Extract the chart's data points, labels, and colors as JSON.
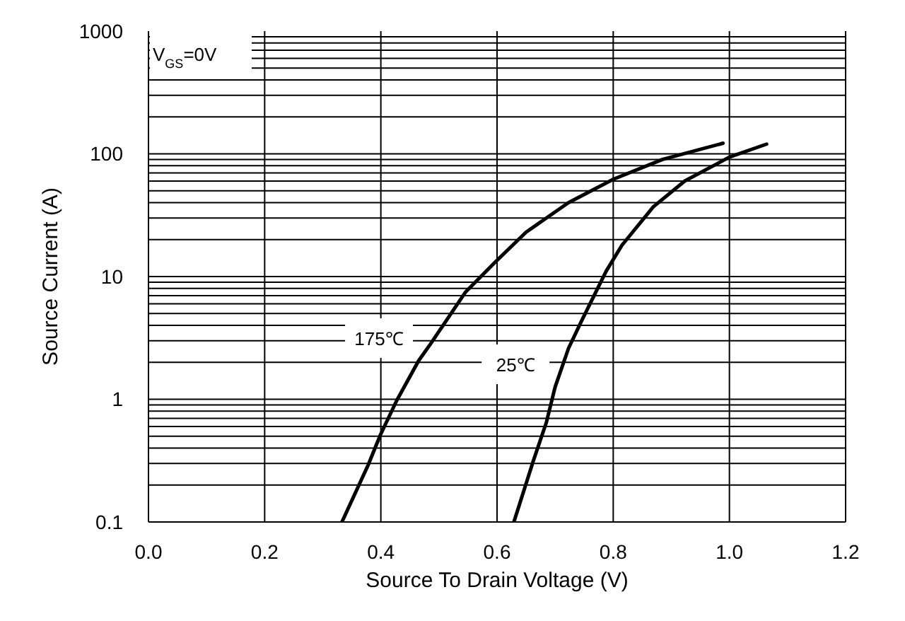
{
  "chart_data": {
    "type": "line",
    "xlabel": "Source To Drain Voltage (V)",
    "ylabel": "Source Current (A)",
    "annotations": [
      "V$_{GS}$=0V"
    ],
    "xlim": [
      0,
      1.2
    ],
    "xticks": [
      {
        "value": 0,
        "label": "0.0"
      },
      0.2,
      0.4,
      0.6,
      0.8,
      {
        "value": 1,
        "label": "1.0"
      },
      1.2
    ],
    "ylim": [
      0.1,
      1000
    ],
    "yticks": [
      0.1,
      1,
      10,
      100,
      1000
    ],
    "log": "y",
    "grid": true,
    "legend": false,
    "marker": "none",
    "line_style": "solid",
    "series": [
      {
        "name": "175℃",
        "color": "#000000",
        "x": [
          0.333,
          0.378,
          0.399,
          0.427,
          0.465,
          0.485,
          0.546,
          0.596,
          0.65,
          0.723,
          0.8,
          0.885,
          0.989
        ],
        "values": [
          0.1,
          0.29,
          0.51,
          0.97,
          2.06,
          2.8,
          7.5,
          13,
          23,
          40,
          62,
          90,
          122
        ]
      },
      {
        "name": "25℃",
        "color": "#000000",
        "x": [
          0.629,
          0.662,
          0.685,
          0.7,
          0.723,
          0.746,
          0.788,
          0.815,
          0.869,
          0.923,
          1.0,
          1.064
        ],
        "values": [
          0.1,
          0.31,
          0.65,
          1.26,
          2.6,
          4.4,
          11.1,
          18,
          37,
          60,
          94,
          120
        ]
      }
    ]
  }
}
